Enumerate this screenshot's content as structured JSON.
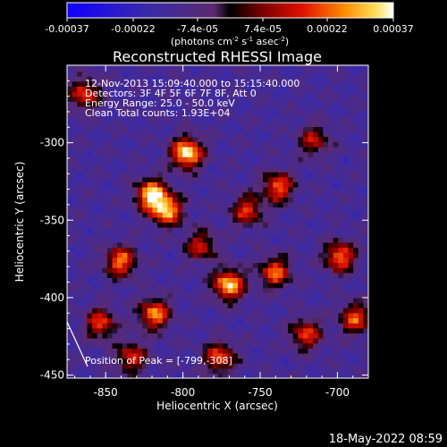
{
  "footer": {
    "timestamp": "18-May-2022 08:59"
  },
  "colorbar": {
    "tick_labels": [
      "-0.00037",
      "-0.00022",
      "-7.4e-05",
      "7.4e-05",
      "0.00022",
      "0.00037"
    ],
    "tick_values": [
      -0.00037,
      -0.00022,
      -7.4e-05,
      7.4e-05,
      0.00022,
      0.00037
    ],
    "range": [
      -0.00037,
      0.00037
    ],
    "unit_main": "(photons cm",
    "unit_sup1": "-2",
    "unit_mid": " s",
    "unit_sup2": "-1",
    "unit_end": " asec",
    "unit_sup3": "-2",
    "unit_close": ")"
  },
  "chart_data": {
    "type": "heatmap",
    "title": "Reconstructed RHESSI Image",
    "xlabel": "Heliocentric X (arcsec)",
    "ylabel": "Heliocentric Y (arcsec)",
    "xlim": [
      -875,
      -680
    ],
    "ylim": [
      -452,
      -250
    ],
    "x_ticks": [
      -850,
      -800,
      -750,
      -700
    ],
    "x_tick_labels": [
      "-850",
      "-800",
      "-750",
      "-700"
    ],
    "y_ticks": [
      -300,
      -350,
      -400,
      -450
    ],
    "y_tick_labels": [
      "-300",
      "-350",
      "-400",
      "-450"
    ],
    "annotations": [
      "12-Nov-2013 15:09:40.000 to 15:15:40.000",
      "Detectors: 3F 4F 5F 6F 7F 8F, Att 0",
      "Energy Range: 25.0 - 50.0 keV",
      "Clean    Total counts: 1.93E+04"
    ],
    "peak_label": "Position of Peak = [-799,-308]",
    "peak_position": [
      -799,
      -308
    ],
    "hot_spots": [
      {
        "x": -799,
        "y": -308,
        "value": 0.00037
      },
      {
        "x": -822,
        "y": -335,
        "value": 0.00034
      },
      {
        "x": -812,
        "y": -345,
        "value": 0.0003
      },
      {
        "x": -772,
        "y": -393,
        "value": 0.00033
      },
      {
        "x": -842,
        "y": -378,
        "value": 0.00024
      },
      {
        "x": -820,
        "y": -412,
        "value": 0.00026
      },
      {
        "x": -740,
        "y": -330,
        "value": 0.00022
      },
      {
        "x": -742,
        "y": -385,
        "value": 0.00022
      },
      {
        "x": -700,
        "y": -375,
        "value": 0.00024
      },
      {
        "x": -690,
        "y": -415,
        "value": 0.0002
      },
      {
        "x": -778,
        "y": -440,
        "value": 0.0002
      },
      {
        "x": -855,
        "y": -418,
        "value": 0.00018
      },
      {
        "x": -722,
        "y": -425,
        "value": 0.00018
      },
      {
        "x": -865,
        "y": -270,
        "value": 0.00018
      },
      {
        "x": -760,
        "y": -345,
        "value": 0.00017
      },
      {
        "x": -790,
        "y": -368,
        "value": 0.00014
      },
      {
        "x": -717,
        "y": -300,
        "value": 0.00012
      },
      {
        "x": -835,
        "y": -440,
        "value": 0.00016
      }
    ]
  }
}
